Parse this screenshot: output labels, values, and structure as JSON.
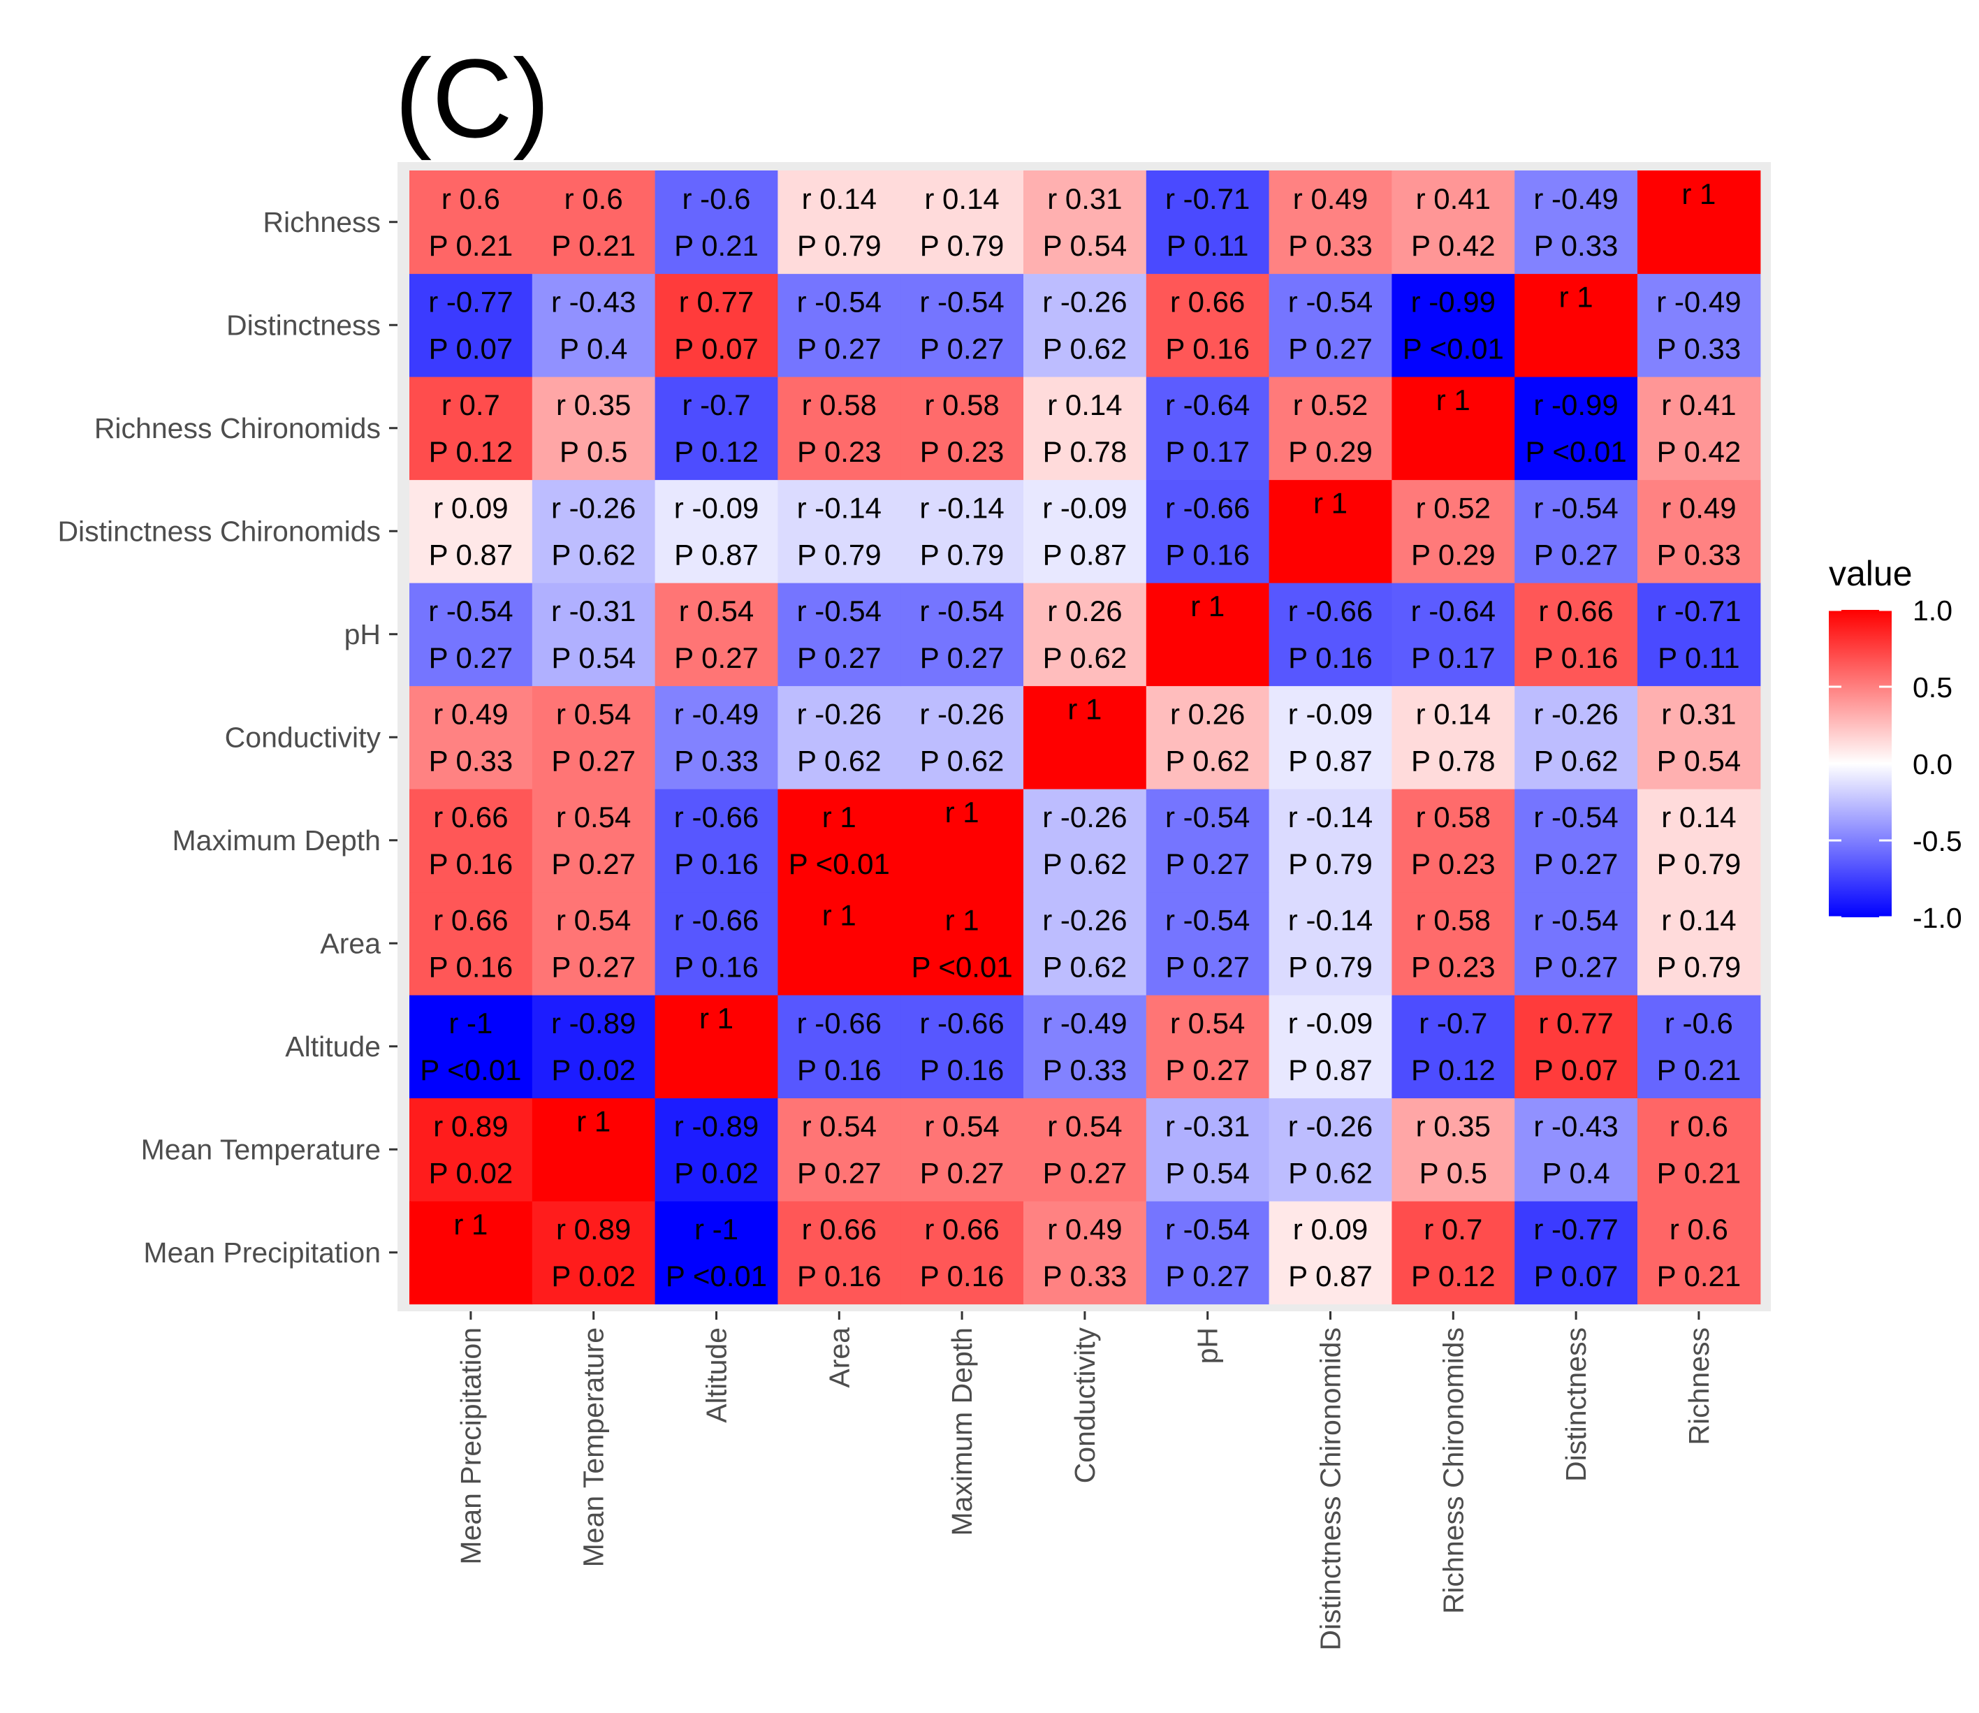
{
  "panel_label": "(C)",
  "legend": {
    "title": "value",
    "ticks": [
      "1.0",
      "0.5",
      "0.0",
      "-0.5",
      "-1.0"
    ]
  },
  "colors": {
    "low": "#0000ff",
    "mid": "#ffffff",
    "high": "#ff0000",
    "panel_bg": "#ebebeb",
    "tick_text": "#4d4d4d"
  },
  "chart_data": {
    "type": "heatmap",
    "title": "",
    "xlabel": "",
    "ylabel": "",
    "fill_label": "value",
    "fill_range": [
      -1,
      1
    ],
    "x_categories": [
      "Mean Precipitation",
      "Mean Temperature",
      "Altitude",
      "Area",
      "Maximum Depth",
      "Conductivity",
      "pH",
      "Distinctness Chironomids",
      "Richness Chironomids",
      "Distinctness",
      "Richness"
    ],
    "y_categories": [
      "Mean Precipitation",
      "Mean Temperature",
      "Altitude",
      "Area",
      "Maximum Depth",
      "Conductivity",
      "pH",
      "Distinctness Chironomids",
      "Richness Chironomids",
      "Distinctness",
      "Richness"
    ],
    "r": [
      [
        1,
        0.89,
        -1,
        0.66,
        0.66,
        0.49,
        -0.54,
        0.09,
        0.7,
        -0.77,
        0.6
      ],
      [
        0.89,
        1,
        -0.89,
        0.54,
        0.54,
        0.54,
        -0.31,
        -0.26,
        0.35,
        -0.43,
        0.6
      ],
      [
        -1,
        -0.89,
        1,
        -0.66,
        -0.66,
        -0.49,
        0.54,
        -0.09,
        -0.7,
        0.77,
        -0.6
      ],
      [
        0.66,
        0.54,
        -0.66,
        1,
        1,
        -0.26,
        -0.54,
        -0.14,
        0.58,
        -0.54,
        0.14
      ],
      [
        0.66,
        0.54,
        -0.66,
        1,
        1,
        -0.26,
        -0.54,
        -0.14,
        0.58,
        -0.54,
        0.14
      ],
      [
        0.49,
        0.54,
        -0.49,
        -0.26,
        -0.26,
        1,
        0.26,
        -0.09,
        0.14,
        -0.26,
        0.31
      ],
      [
        -0.54,
        -0.31,
        0.54,
        -0.54,
        -0.54,
        0.26,
        1,
        -0.66,
        -0.64,
        0.66,
        -0.71
      ],
      [
        0.09,
        -0.26,
        -0.09,
        -0.14,
        -0.14,
        -0.09,
        -0.66,
        1,
        0.52,
        -0.54,
        0.49
      ],
      [
        0.7,
        0.35,
        -0.7,
        0.58,
        0.58,
        0.14,
        -0.64,
        0.52,
        1,
        -0.99,
        0.41
      ],
      [
        -0.77,
        -0.43,
        0.77,
        -0.54,
        -0.54,
        -0.26,
        0.66,
        -0.54,
        -0.99,
        1,
        -0.49
      ],
      [
        0.6,
        0.6,
        -0.6,
        0.14,
        0.14,
        0.31,
        -0.71,
        0.49,
        0.41,
        -0.49,
        1
      ]
    ],
    "cell_text": [
      [
        [
          "r 1"
        ],
        [
          "r 0.89",
          "P 0.02"
        ],
        [
          "r -1",
          "P <0.01"
        ],
        [
          "r 0.66",
          "P 0.16"
        ],
        [
          "r 0.66",
          "P 0.16"
        ],
        [
          "r 0.49",
          "P 0.33"
        ],
        [
          "r -0.54",
          "P 0.27"
        ],
        [
          "r 0.09",
          "P 0.87"
        ],
        [
          "r 0.7",
          "P 0.12"
        ],
        [
          "r -0.77",
          "P 0.07"
        ],
        [
          "r 0.6",
          "P 0.21"
        ]
      ],
      [
        [
          "r 0.89",
          "P 0.02"
        ],
        [
          "r 1"
        ],
        [
          "r -0.89",
          "P 0.02"
        ],
        [
          "r 0.54",
          "P 0.27"
        ],
        [
          "r 0.54",
          "P 0.27"
        ],
        [
          "r 0.54",
          "P 0.27"
        ],
        [
          "r -0.31",
          "P 0.54"
        ],
        [
          "r -0.26",
          "P 0.62"
        ],
        [
          "r 0.35",
          "P 0.5"
        ],
        [
          "r -0.43",
          "P 0.4"
        ],
        [
          "r 0.6",
          "P 0.21"
        ]
      ],
      [
        [
          "r -1",
          "P <0.01"
        ],
        [
          "r -0.89",
          "P 0.02"
        ],
        [
          "r 1"
        ],
        [
          "r -0.66",
          "P 0.16"
        ],
        [
          "r -0.66",
          "P 0.16"
        ],
        [
          "r -0.49",
          "P 0.33"
        ],
        [
          "r 0.54",
          "P 0.27"
        ],
        [
          "r -0.09",
          "P 0.87"
        ],
        [
          "r -0.7",
          "P 0.12"
        ],
        [
          "r 0.77",
          "P 0.07"
        ],
        [
          "r -0.6",
          "P 0.21"
        ]
      ],
      [
        [
          "r 0.66",
          "P 0.16"
        ],
        [
          "r 0.54",
          "P 0.27"
        ],
        [
          "r -0.66",
          "P 0.16"
        ],
        [
          "r 1"
        ],
        [
          "r 1",
          "P <0.01"
        ],
        [
          "r -0.26",
          "P 0.62"
        ],
        [
          "r -0.54",
          "P 0.27"
        ],
        [
          "r -0.14",
          "P 0.79"
        ],
        [
          "r 0.58",
          "P 0.23"
        ],
        [
          "r -0.54",
          "P 0.27"
        ],
        [
          "r 0.14",
          "P 0.79"
        ]
      ],
      [
        [
          "r 0.66",
          "P 0.16"
        ],
        [
          "r 0.54",
          "P 0.27"
        ],
        [
          "r -0.66",
          "P 0.16"
        ],
        [
          "r 1",
          "P <0.01"
        ],
        [
          "r 1"
        ],
        [
          "r -0.26",
          "P 0.62"
        ],
        [
          "r -0.54",
          "P 0.27"
        ],
        [
          "r -0.14",
          "P 0.79"
        ],
        [
          "r 0.58",
          "P 0.23"
        ],
        [
          "r -0.54",
          "P 0.27"
        ],
        [
          "r 0.14",
          "P 0.79"
        ]
      ],
      [
        [
          "r 0.49",
          "P 0.33"
        ],
        [
          "r 0.54",
          "P 0.27"
        ],
        [
          "r -0.49",
          "P 0.33"
        ],
        [
          "r -0.26",
          "P 0.62"
        ],
        [
          "r -0.26",
          "P 0.62"
        ],
        [
          "r 1"
        ],
        [
          "r 0.26",
          "P 0.62"
        ],
        [
          "r -0.09",
          "P 0.87"
        ],
        [
          "r 0.14",
          "P 0.78"
        ],
        [
          "r -0.26",
          "P 0.62"
        ],
        [
          "r 0.31",
          "P 0.54"
        ]
      ],
      [
        [
          "r -0.54",
          "P 0.27"
        ],
        [
          "r -0.31",
          "P 0.54"
        ],
        [
          "r 0.54",
          "P 0.27"
        ],
        [
          "r -0.54",
          "P 0.27"
        ],
        [
          "r -0.54",
          "P 0.27"
        ],
        [
          "r 0.26",
          "P 0.62"
        ],
        [
          "r 1"
        ],
        [
          "r -0.66",
          "P 0.16"
        ],
        [
          "r -0.64",
          "P 0.17"
        ],
        [
          "r 0.66",
          "P 0.16"
        ],
        [
          "r -0.71",
          "P 0.11"
        ]
      ],
      [
        [
          "r 0.09",
          "P 0.87"
        ],
        [
          "r -0.26",
          "P 0.62"
        ],
        [
          "r -0.09",
          "P 0.87"
        ],
        [
          "r -0.14",
          "P 0.79"
        ],
        [
          "r -0.14",
          "P 0.79"
        ],
        [
          "r -0.09",
          "P 0.87"
        ],
        [
          "r -0.66",
          "P 0.16"
        ],
        [
          "r 1"
        ],
        [
          "r 0.52",
          "P 0.29"
        ],
        [
          "r -0.54",
          "P 0.27"
        ],
        [
          "r 0.49",
          "P 0.33"
        ]
      ],
      [
        [
          "r 0.7",
          "P 0.12"
        ],
        [
          "r 0.35",
          "P 0.5"
        ],
        [
          "r -0.7",
          "P 0.12"
        ],
        [
          "r 0.58",
          "P 0.23"
        ],
        [
          "r 0.58",
          "P 0.23"
        ],
        [
          "r 0.14",
          "P 0.78"
        ],
        [
          "r -0.64",
          "P 0.17"
        ],
        [
          "r 0.52",
          "P 0.29"
        ],
        [
          "r 1"
        ],
        [
          "r -0.99",
          "P <0.01"
        ],
        [
          "r 0.41",
          "P 0.42"
        ]
      ],
      [
        [
          "r -0.77",
          "P 0.07"
        ],
        [
          "r -0.43",
          "P 0.4"
        ],
        [
          "r 0.77",
          "P 0.07"
        ],
        [
          "r -0.54",
          "P 0.27"
        ],
        [
          "r -0.54",
          "P 0.27"
        ],
        [
          "r -0.26",
          "P 0.62"
        ],
        [
          "r 0.66",
          "P 0.16"
        ],
        [
          "r -0.54",
          "P 0.27"
        ],
        [
          "r -0.99",
          "P <0.01"
        ],
        [
          "r 1"
        ],
        [
          "r -0.49",
          "P 0.33"
        ]
      ],
      [
        [
          "r 0.6",
          "P 0.21"
        ],
        [
          "r 0.6",
          "P 0.21"
        ],
        [
          "r -0.6",
          "P 0.21"
        ],
        [
          "r 0.14",
          "P 0.79"
        ],
        [
          "r 0.14",
          "P 0.79"
        ],
        [
          "r 0.31",
          "P 0.54"
        ],
        [
          "r -0.71",
          "P 0.11"
        ],
        [
          "r 0.49",
          "P 0.33"
        ],
        [
          "r 0.41",
          "P 0.42"
        ],
        [
          "r -0.49",
          "P 0.33"
        ],
        [
          "r 1"
        ]
      ]
    ]
  }
}
